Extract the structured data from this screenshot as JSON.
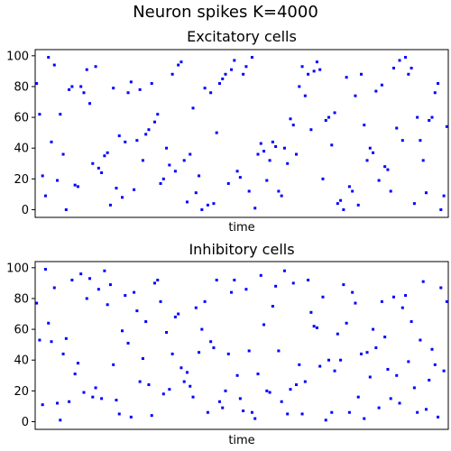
{
  "figure": {
    "suptitle": "Neuron spikes K=4000"
  },
  "chart_data": [
    {
      "type": "scatter",
      "title": "Excitatory cells",
      "xlabel": "time",
      "ylabel": "",
      "ylim": [
        -5,
        104
      ],
      "xlim": [
        0,
        1
      ],
      "xticks_shown": false,
      "yticks": [
        0,
        20,
        40,
        60,
        80,
        100
      ],
      "marker_color": "#0000ff",
      "series": [
        {
          "name": "",
          "points": [
            [
              0.008,
              82
            ],
            [
              0.01,
              62
            ],
            [
              0.012,
              22
            ],
            [
              0.014,
              9
            ],
            [
              0.017,
              99
            ],
            [
              0.019,
              44
            ],
            [
              0.022,
              94
            ],
            [
              0.024,
              19
            ],
            [
              0.028,
              62
            ],
            [
              0.031,
              36
            ],
            [
              0.034,
              0
            ],
            [
              0.037,
              78
            ],
            [
              0.04,
              80
            ],
            [
              0.043,
              16
            ],
            [
              0.046,
              15
            ],
            [
              0.047,
              80
            ],
            [
              0.048,
              76
            ],
            [
              0.05,
              91
            ],
            [
              0.052,
              69
            ],
            [
              0.054,
              30
            ],
            [
              0.056,
              93
            ],
            [
              0.058,
              27
            ],
            [
              0.06,
              24
            ],
            [
              0.062,
              35
            ],
            [
              0.064,
              37
            ],
            [
              0.066,
              3
            ],
            [
              0.068,
              79
            ],
            [
              0.071,
              14
            ],
            [
              0.073,
              48
            ],
            [
              0.075,
              8
            ],
            [
              0.077,
              44
            ],
            [
              0.079,
              76
            ],
            [
              0.081,
              83
            ],
            [
              0.083,
              13
            ],
            [
              0.085,
              45
            ],
            [
              0.087,
              78
            ],
            [
              0.089,
              32
            ],
            [
              0.091,
              49
            ],
            [
              0.093,
              52
            ],
            [
              0.095,
              82
            ],
            [
              0.097,
              57
            ],
            [
              0.099,
              62
            ],
            [
              0.101,
              17
            ],
            [
              0.103,
              20
            ],
            [
              0.105,
              40
            ],
            [
              0.107,
              29
            ],
            [
              0.109,
              88
            ],
            [
              0.111,
              25
            ],
            [
              0.113,
              94
            ],
            [
              0.115,
              96
            ],
            [
              0.117,
              32
            ],
            [
              0.119,
              5
            ],
            [
              0.121,
              36
            ],
            [
              0.123,
              66
            ],
            [
              0.125,
              11
            ],
            [
              0.127,
              22
            ],
            [
              0.129,
              0
            ],
            [
              0.131,
              79
            ],
            [
              0.133,
              3
            ],
            [
              0.135,
              76
            ],
            [
              0.137,
              4
            ],
            [
              0.139,
              50
            ],
            [
              0.141,
              82
            ],
            [
              0.143,
              85
            ],
            [
              0.145,
              88
            ],
            [
              0.147,
              17
            ],
            [
              0.149,
              91
            ],
            [
              0.151,
              97
            ],
            [
              0.153,
              25
            ],
            [
              0.155,
              21
            ],
            [
              0.157,
              88
            ],
            [
              0.159,
              93
            ],
            [
              0.161,
              12
            ],
            [
              0.163,
              99
            ],
            [
              0.165,
              1
            ],
            [
              0.167,
              36
            ],
            [
              0.169,
              43
            ],
            [
              0.171,
              38
            ],
            [
              0.173,
              19
            ],
            [
              0.175,
              32
            ],
            [
              0.177,
              44
            ],
            [
              0.179,
              41
            ],
            [
              0.181,
              12
            ],
            [
              0.183,
              9
            ],
            [
              0.185,
              40
            ],
            [
              0.187,
              30
            ],
            [
              0.189,
              59
            ],
            [
              0.191,
              55
            ],
            [
              0.193,
              36
            ],
            [
              0.195,
              80
            ],
            [
              0.197,
              93
            ],
            [
              0.199,
              74
            ],
            [
              0.201,
              88
            ],
            [
              0.203,
              52
            ],
            [
              0.205,
              90
            ],
            [
              0.207,
              96
            ],
            [
              0.209,
              91
            ],
            [
              0.211,
              20
            ],
            [
              0.213,
              58
            ],
            [
              0.215,
              60
            ],
            [
              0.217,
              42
            ],
            [
              0.219,
              63
            ],
            [
              0.221,
              4
            ],
            [
              0.223,
              6
            ],
            [
              0.225,
              0
            ],
            [
              0.227,
              86
            ],
            [
              0.229,
              15
            ],
            [
              0.231,
              12
            ],
            [
              0.233,
              74
            ],
            [
              0.235,
              3
            ],
            [
              0.237,
              88
            ],
            [
              0.239,
              55
            ],
            [
              0.241,
              32
            ],
            [
              0.243,
              40
            ],
            [
              0.245,
              37
            ],
            [
              0.247,
              77
            ],
            [
              0.249,
              19
            ],
            [
              0.251,
              81
            ],
            [
              0.253,
              28
            ],
            [
              0.255,
              26
            ],
            [
              0.257,
              12
            ],
            [
              0.259,
              92
            ],
            [
              0.261,
              53
            ],
            [
              0.263,
              97
            ],
            [
              0.265,
              45
            ],
            [
              0.267,
              99
            ],
            [
              0.269,
              88
            ],
            [
              0.271,
              92
            ],
            [
              0.273,
              4
            ],
            [
              0.275,
              60
            ],
            [
              0.277,
              45
            ],
            [
              0.279,
              32
            ],
            [
              0.281,
              11
            ],
            [
              0.283,
              58
            ],
            [
              0.285,
              60
            ],
            [
              0.287,
              76
            ],
            [
              0.289,
              82
            ],
            [
              0.291,
              0
            ],
            [
              0.293,
              9
            ],
            [
              0.295,
              54
            ]
          ]
        }
      ]
    },
    {
      "type": "scatter",
      "title": "Inhibitory cells",
      "xlabel": "time",
      "ylabel": "",
      "ylim": [
        -5,
        104
      ],
      "xlim": [
        0,
        1
      ],
      "xticks_shown": false,
      "yticks": [
        0,
        20,
        40,
        60,
        80,
        100
      ],
      "marker_color": "#0000ff",
      "series": [
        {
          "name": "",
          "points": [
            [
              0.008,
              77
            ],
            [
              0.012,
              53
            ],
            [
              0.014,
              11
            ],
            [
              0.016,
              99
            ],
            [
              0.018,
              64
            ],
            [
              0.02,
              52
            ],
            [
              0.022,
              87
            ],
            [
              0.024,
              12
            ],
            [
              0.026,
              1
            ],
            [
              0.028,
              44
            ],
            [
              0.03,
              54
            ],
            [
              0.032,
              13
            ],
            [
              0.034,
              92
            ],
            [
              0.036,
              31
            ],
            [
              0.038,
              38
            ],
            [
              0.04,
              96
            ],
            [
              0.042,
              19
            ],
            [
              0.044,
              80
            ],
            [
              0.046,
              93
            ],
            [
              0.048,
              16
            ],
            [
              0.05,
              22
            ],
            [
              0.052,
              86
            ],
            [
              0.054,
              15
            ],
            [
              0.056,
              98
            ],
            [
              0.058,
              76
            ],
            [
              0.06,
              89
            ],
            [
              0.062,
              37
            ],
            [
              0.064,
              14
            ],
            [
              0.066,
              5
            ],
            [
              0.068,
              59
            ],
            [
              0.07,
              82
            ],
            [
              0.072,
              51
            ],
            [
              0.074,
              3
            ],
            [
              0.076,
              84
            ],
            [
              0.078,
              72
            ],
            [
              0.08,
              26
            ],
            [
              0.082,
              41
            ],
            [
              0.084,
              65
            ],
            [
              0.086,
              24
            ],
            [
              0.088,
              4
            ],
            [
              0.09,
              90
            ],
            [
              0.092,
              92
            ],
            [
              0.094,
              78
            ],
            [
              0.096,
              18
            ],
            [
              0.098,
              58
            ],
            [
              0.1,
              21
            ],
            [
              0.102,
              44
            ],
            [
              0.104,
              68
            ],
            [
              0.106,
              70
            ],
            [
              0.108,
              35
            ],
            [
              0.11,
              26
            ],
            [
              0.112,
              32
            ],
            [
              0.114,
              23
            ],
            [
              0.116,
              16
            ],
            [
              0.118,
              74
            ],
            [
              0.12,
              45
            ],
            [
              0.122,
              60
            ],
            [
              0.124,
              78
            ],
            [
              0.126,
              6
            ],
            [
              0.128,
              52
            ],
            [
              0.13,
              48
            ],
            [
              0.132,
              92
            ],
            [
              0.134,
              13
            ],
            [
              0.136,
              9
            ],
            [
              0.138,
              20
            ],
            [
              0.14,
              44
            ],
            [
              0.142,
              84
            ],
            [
              0.144,
              92
            ],
            [
              0.146,
              30
            ],
            [
              0.148,
              15
            ],
            [
              0.15,
              7
            ],
            [
              0.152,
              86
            ],
            [
              0.154,
              46
            ],
            [
              0.156,
              6
            ],
            [
              0.158,
              2
            ],
            [
              0.16,
              31
            ],
            [
              0.162,
              95
            ],
            [
              0.164,
              63
            ],
            [
              0.166,
              20
            ],
            [
              0.168,
              19
            ],
            [
              0.17,
              75
            ],
            [
              0.172,
              88
            ],
            [
              0.174,
              46
            ],
            [
              0.176,
              13
            ],
            [
              0.178,
              98
            ],
            [
              0.18,
              5
            ],
            [
              0.182,
              21
            ],
            [
              0.184,
              90
            ],
            [
              0.186,
              24
            ],
            [
              0.188,
              37
            ],
            [
              0.19,
              5
            ],
            [
              0.192,
              26
            ],
            [
              0.194,
              92
            ],
            [
              0.196,
              71
            ],
            [
              0.198,
              62
            ],
            [
              0.2,
              61
            ],
            [
              0.202,
              36
            ],
            [
              0.204,
              81
            ],
            [
              0.206,
              1
            ],
            [
              0.208,
              40
            ],
            [
              0.21,
              6
            ],
            [
              0.212,
              33
            ],
            [
              0.214,
              57
            ],
            [
              0.216,
              40
            ],
            [
              0.218,
              89
            ],
            [
              0.22,
              64
            ],
            [
              0.222,
              6
            ],
            [
              0.224,
              84
            ],
            [
              0.226,
              77
            ],
            [
              0.228,
              16
            ],
            [
              0.23,
              44
            ],
            [
              0.232,
              2
            ],
            [
              0.234,
              45
            ],
            [
              0.236,
              29
            ],
            [
              0.238,
              60
            ],
            [
              0.24,
              48
            ],
            [
              0.242,
              9
            ],
            [
              0.244,
              78
            ],
            [
              0.246,
              55
            ],
            [
              0.248,
              34
            ],
            [
              0.25,
              15
            ],
            [
              0.252,
              81
            ],
            [
              0.254,
              30
            ],
            [
              0.256,
              12
            ],
            [
              0.258,
              74
            ],
            [
              0.26,
              82
            ],
            [
              0.262,
              39
            ],
            [
              0.264,
              65
            ],
            [
              0.266,
              22
            ],
            [
              0.268,
              6
            ],
            [
              0.27,
              53
            ],
            [
              0.272,
              91
            ],
            [
              0.274,
              8
            ],
            [
              0.276,
              27
            ],
            [
              0.278,
              47
            ],
            [
              0.28,
              37
            ],
            [
              0.282,
              3
            ],
            [
              0.284,
              87
            ],
            [
              0.286,
              33
            ],
            [
              0.288,
              78
            ]
          ]
        }
      ]
    }
  ]
}
